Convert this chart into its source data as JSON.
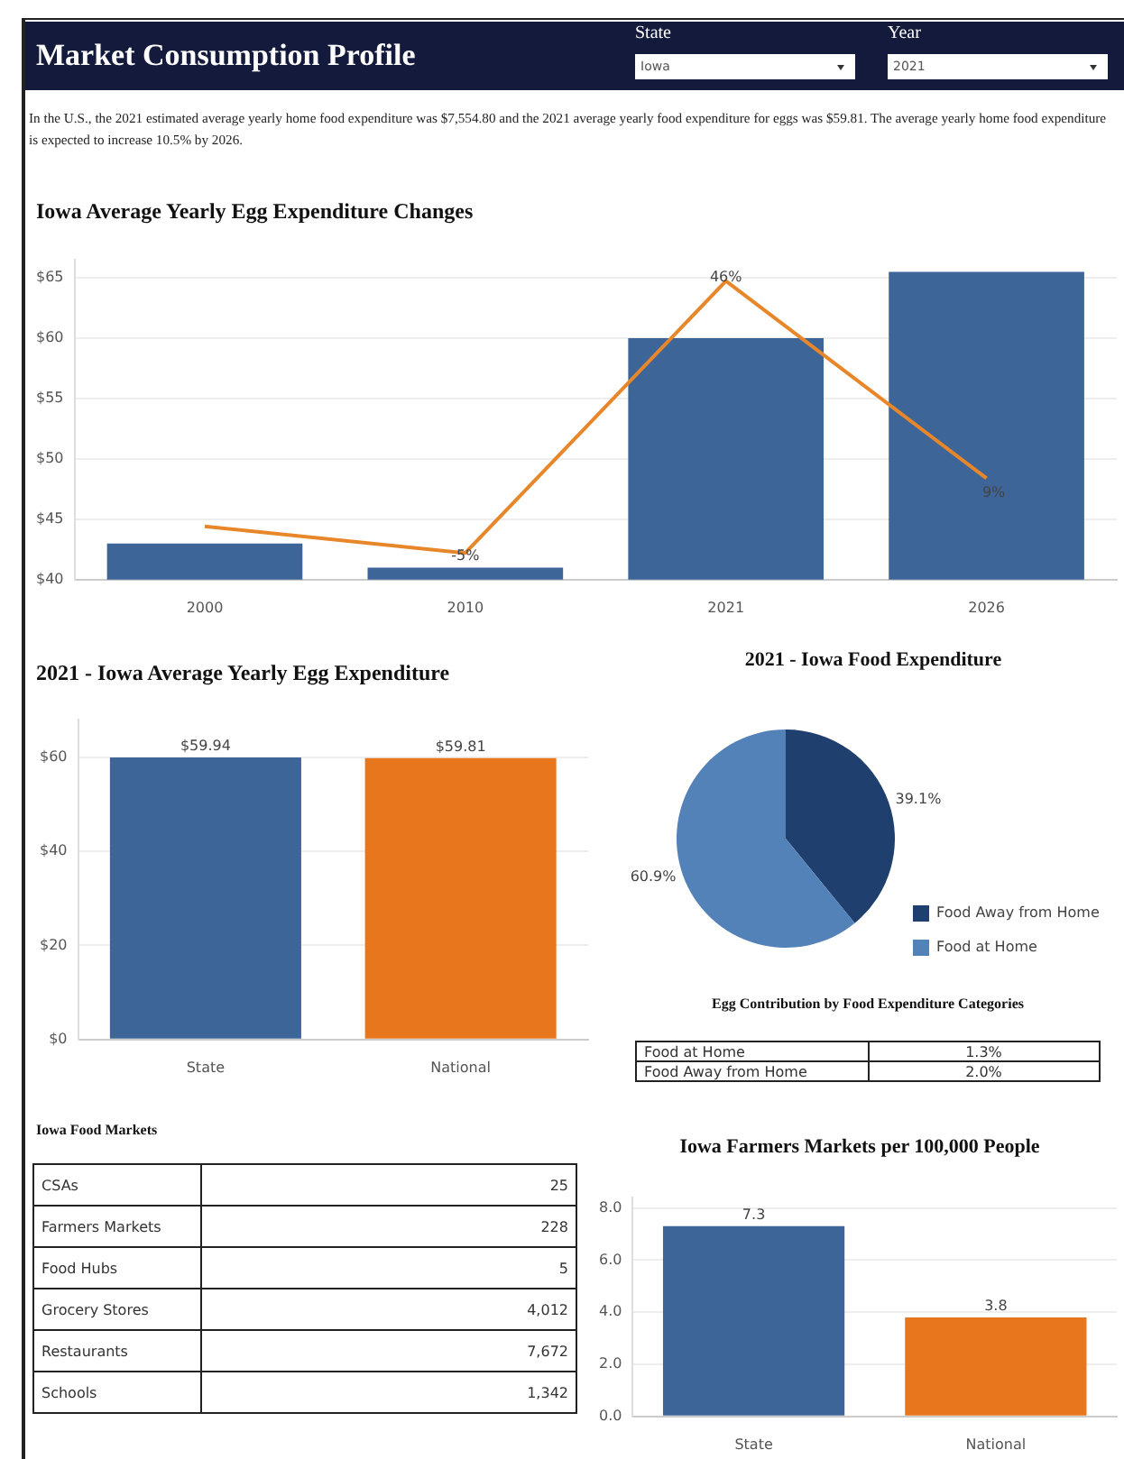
{
  "chart_data": [
    {
      "type": "other",
      "title": "Market Consumption Profile",
      "annotations": [
        "State",
        "Iowa",
        "Year",
        "2021",
        "In the U.S., the 2021 estimated average yearly home food expenditure was $7,554.80 and the 2021 average yearly food expenditure for eggs was $59.81. The average yearly home food expenditure is expected to increase 10.5% by 2026."
      ]
    },
    {
      "type": "bar",
      "title": "Iowa Average Yearly Egg Expenditure Changes",
      "categories": [
        "2000",
        "2010",
        "2021",
        "2026"
      ],
      "series": [
        {
          "type": "bar",
          "color": "#3e6598",
          "values": [
            43,
            41,
            60,
            65.5
          ]
        },
        {
          "type": "line",
          "axis": "y2",
          "color": "#e8862a",
          "values": [
            0,
            -5,
            46,
            9
          ],
          "value_labels": [
            null,
            "-5%",
            "46%",
            "9%"
          ]
        }
      ],
      "ylim": [
        40,
        66.5
      ],
      "yticks": [
        {
          "value": 40,
          "label": "$40"
        },
        {
          "value": 45,
          "label": "$45"
        },
        {
          "value": 50,
          "label": "$50"
        },
        {
          "value": 55,
          "label": "$55"
        },
        {
          "value": 60,
          "label": "$60"
        },
        {
          "value": 65,
          "label": "$65"
        }
      ],
      "grid": "y",
      "marker": "none",
      "legend": false
    },
    {
      "type": "bar",
      "title": "2021 - Iowa Average Yearly Egg Expenditure",
      "categories": [
        "State",
        "National"
      ],
      "values": [
        59.94,
        59.81
      ],
      "colors": [
        "#3e6598",
        "#e8761c"
      ],
      "value_labels": [
        "$59.94",
        "$59.81"
      ],
      "ylim": [
        0,
        68
      ],
      "yticks": [
        {
          "value": 0,
          "label": "$0"
        },
        {
          "value": 20,
          "label": "$20"
        },
        {
          "value": 40,
          "label": "$40"
        },
        {
          "value": 60,
          "label": "$60"
        }
      ],
      "grid": "y",
      "legend": false
    },
    {
      "type": "pie",
      "title": "2021 - Iowa Food Expenditure",
      "categories": [
        "Food Away from Home",
        "Food at Home"
      ],
      "values": [
        39.1,
        60.9
      ],
      "colors": [
        "#1f3f6e",
        "#5282b8"
      ],
      "value_labels": [
        "39.1%",
        "60.9%"
      ],
      "legend": "bottom right"
    },
    {
      "type": "other",
      "title": "Egg Contribution by Food Expenditure Categories",
      "annotations": [
        "Food at Home",
        "1.3%",
        "Food Away from Home",
        "2.0%"
      ]
    },
    {
      "type": "other",
      "title": "Iowa Food Markets",
      "annotations": [
        "CSAs",
        "25",
        "Farmers Markets",
        "228",
        "Food Hubs",
        "5",
        "Grocery Stores",
        "4,012",
        "Restaurants",
        "7,672",
        "Schools",
        "1,342"
      ]
    },
    {
      "type": "bar",
      "title": "Iowa Farmers Markets per 100,000 People",
      "categories": [
        "State",
        "National"
      ],
      "values": [
        7.3,
        3.8
      ],
      "colors": [
        "#3e6598",
        "#e8761c"
      ],
      "data_labels": true,
      "ylim": [
        0,
        8.4
      ],
      "yticks": [
        {
          "value": 0,
          "label": "0.0"
        },
        {
          "value": 2,
          "label": "2.0"
        },
        {
          "value": 4,
          "label": "4.0"
        },
        {
          "value": 6,
          "label": "6.0"
        },
        {
          "value": 8,
          "label": "8.0"
        }
      ],
      "grid": "y",
      "legend": false
    }
  ]
}
